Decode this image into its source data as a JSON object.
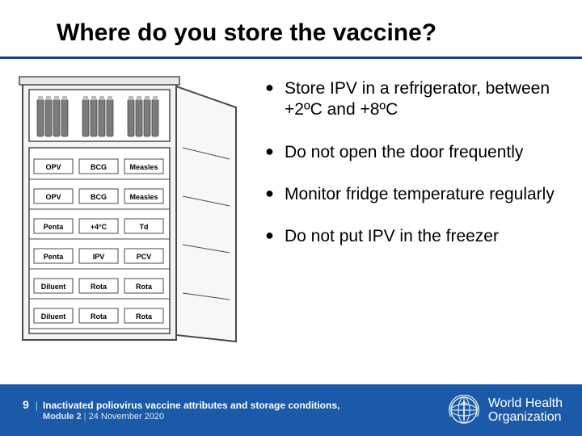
{
  "title": "Where do you store the vaccine?",
  "title_rule_color": "#1a3e8a",
  "bullets": {
    "items": [
      "Store IPV in a refrigerator, between +2ºC and +8ºC",
      "Do not open the door frequently",
      "Monitor fridge temperature regularly",
      "Do not put IPV in the freezer"
    ],
    "bullet_color": "#000000",
    "font_size": 21
  },
  "footer": {
    "background": "#1a5aa8",
    "page_number": "9",
    "line1": "Inactivated poliovirus vaccine attributes and storage conditions,",
    "module": "Module 2",
    "date": "24 November 2020",
    "org_line1": "World Health",
    "org_line2": "Organization"
  },
  "fridge": {
    "outline_color": "#4a4a4a",
    "fill": "#f3f3f3",
    "shelf_fill": "#ffffff",
    "vial_fill": "#7b7b7b",
    "label_fill": "#ffffff",
    "label_text_color": "#000000",
    "freezer_vial_groups": 3,
    "rows": [
      {
        "labels": [
          "OPV",
          "BCG",
          "Measles"
        ]
      },
      {
        "labels": [
          "OPV",
          "BCG",
          "Measles"
        ]
      },
      {
        "labels": [
          "Penta",
          "+4°C",
          "Td"
        ]
      },
      {
        "labels": [
          "Penta",
          "IPV",
          "PCV"
        ]
      },
      {
        "labels": [
          "Diluent",
          "Rota",
          "Rota"
        ]
      },
      {
        "labels": [
          "Diluent",
          "Rota",
          "Rota"
        ]
      }
    ]
  }
}
